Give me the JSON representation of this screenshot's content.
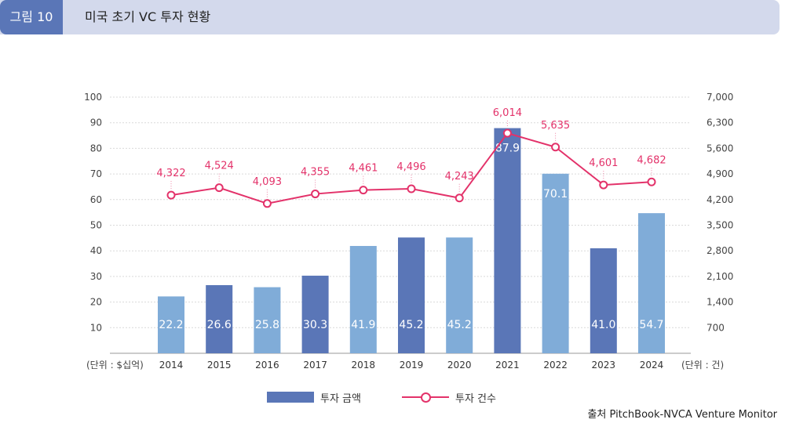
{
  "header": {
    "figure_label": "그림 10",
    "title": "미국 초기 VC 투자 현황"
  },
  "chart_data": {
    "type": "bar",
    "categories": [
      "2014",
      "2015",
      "2016",
      "2017",
      "2018",
      "2019",
      "2020",
      "2021",
      "2022",
      "2023",
      "2024"
    ],
    "series": [
      {
        "name": "투자 금액",
        "type": "bar",
        "axis": "left",
        "values": [
          22.2,
          26.6,
          25.8,
          30.3,
          41.9,
          45.2,
          45.2,
          87.9,
          70.1,
          41.0,
          54.7
        ],
        "labels": [
          "22.2",
          "26.6",
          "25.8",
          "30.3",
          "41.9",
          "45.2",
          "45.2",
          "87.9",
          "70.1",
          "41.0",
          "54.7"
        ],
        "colors": [
          "#80acd8",
          "#5a76b7",
          "#80acd8",
          "#5a76b7",
          "#80acd8",
          "#5a76b7",
          "#80acd8",
          "#5a76b7",
          "#80acd8",
          "#5a76b7",
          "#80acd8"
        ]
      },
      {
        "name": "투자 건수",
        "type": "line",
        "axis": "right",
        "values": [
          4322,
          4524,
          4093,
          4355,
          4461,
          4496,
          4243,
          6014,
          5635,
          4601,
          4682
        ],
        "labels": [
          "4,322",
          "4,524",
          "4,093",
          "4,355",
          "4,461",
          "4,496",
          "4,243",
          "6,014",
          "5,635",
          "4,601",
          "4,682"
        ],
        "color": "#e3326a"
      }
    ],
    "left_axis": {
      "unit_label": "(단위 : $십억)",
      "range": [
        0,
        100
      ],
      "ticks": [
        10,
        20,
        30,
        40,
        50,
        60,
        70,
        80,
        90,
        100
      ],
      "tick_labels": [
        "10",
        "20",
        "30",
        "40",
        "50",
        "60",
        "70",
        "80",
        "90",
        "100"
      ]
    },
    "right_axis": {
      "unit_label": "(단위 : 건)",
      "range": [
        0,
        7000
      ],
      "ticks": [
        700,
        1400,
        2100,
        2800,
        3500,
        4200,
        4900,
        5600,
        6300,
        7000
      ],
      "tick_labels": [
        "700",
        "1,400",
        "2,100",
        "2,800",
        "3,500",
        "4,200",
        "4,900",
        "5,600",
        "6,300",
        "7,000"
      ]
    },
    "grid": true,
    "legend_position": "bottom-center"
  },
  "legend": {
    "bar_label": "투자 금액",
    "line_label": "투자 건수"
  },
  "source": "출처 PitchBook-NVCA Venture Monitor",
  "colors": {
    "bar_dark": "#5a76b7",
    "bar_light": "#80acd8",
    "line": "#e3326a",
    "header_bg": "#d3d9ec",
    "tag_bg": "#5a76b7"
  }
}
